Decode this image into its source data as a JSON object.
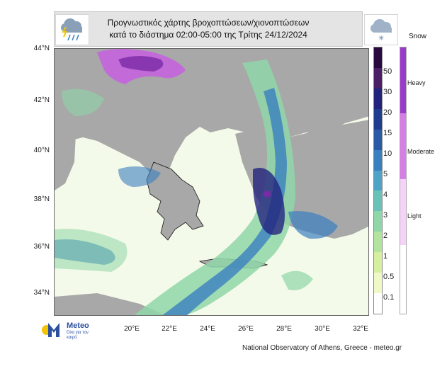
{
  "title": {
    "line1": "Προγνωστικός χάρτης βροχοπτώσεων/χιονοπτώσεων",
    "line2": "κατά το διάστημα 02:00-05:00 της Τρίτης 24/12/2024"
  },
  "lat_labels": [
    "44°N",
    "42°N",
    "40°N",
    "38°N",
    "36°N",
    "34°N"
  ],
  "lon_labels": [
    "20°E",
    "22°E",
    "24°E",
    "26°E",
    "28°E",
    "30°E",
    "32°E"
  ],
  "rain_scale": {
    "labels": [
      "50",
      "30",
      "20",
      "15",
      "10",
      "5",
      "4",
      "3",
      "2",
      "1",
      "0.5",
      "0.1"
    ],
    "colors": [
      "#2a0a3e",
      "#4a1f66",
      "#23237e",
      "#1f3c8f",
      "#2a5aa6",
      "#3a7fbf",
      "#4fa3c4",
      "#69c2b8",
      "#8fd6a8",
      "#b3e39f",
      "#d6ef9f",
      "#f1f8c8",
      "#ffffff"
    ]
  },
  "snow_scale": {
    "title": "Snow",
    "levels": [
      {
        "label": "Heavy",
        "color": "#9b3bc9"
      },
      {
        "label": "Moderate",
        "color": "#d67ee8"
      },
      {
        "label": "Light",
        "color": "#f5d2f7"
      }
    ]
  },
  "logo": {
    "name": "Meteo",
    "tagline": "Όλα για τον καιρό"
  },
  "credit": "National Observatory of Athens, Greece - meteo.gr",
  "icons": {
    "rain_icon": "rain-cloud-icon",
    "snow_icon": "snow-cloud-icon"
  },
  "colors": {
    "sea": "#ffffff",
    "land": "#a8a8a8",
    "logo_blue": "#2c4fa0",
    "logo_yellow": "#f2c500"
  }
}
